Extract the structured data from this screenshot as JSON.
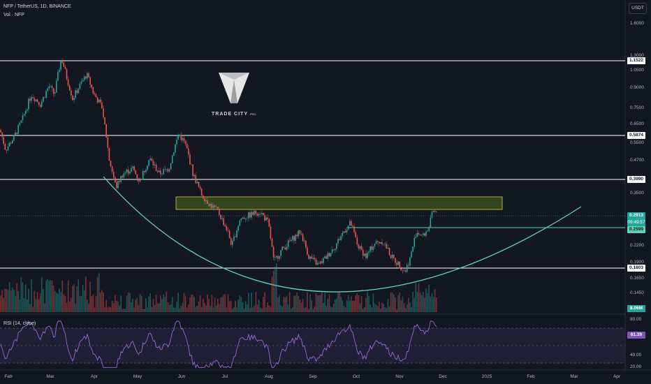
{
  "header": {
    "symbol_line": "NFP / TetherUS, 1D, BINANCE",
    "volume_line": "Vol · NFP"
  },
  "currency": "USDT",
  "logo": {
    "name": "TRADE CITY",
    "suffix": "PRO"
  },
  "price_axis": {
    "ticks": [
      "1.6000",
      "1.3000",
      "1.0500",
      "0.9000",
      "0.7500",
      "0.6500",
      "0.5500",
      "0.4700",
      "0.3500",
      "0.2200",
      "0.1900",
      "0.1650",
      "0.1450"
    ]
  },
  "price_labels": {
    "level_1": "1.1522",
    "level_2": "0.5874",
    "level_3": "0.3990",
    "last_price": "0.2913",
    "countdown": "09:49:57",
    "level_4": "0.2599",
    "level_5": "0.1803",
    "volume": "8.06M"
  },
  "rsi": {
    "title": "RSI (14, close)",
    "value": "61.39",
    "ticks": [
      "80.00",
      "40.00",
      "20.00"
    ]
  },
  "time_axis": [
    "Feb",
    "Mar",
    "Apr",
    "May",
    "Jun",
    "Jul",
    "Aug",
    "Sep",
    "Oct",
    "Nov",
    "Dec",
    "2025",
    "Feb",
    "Mar",
    "Apr"
  ],
  "colors": {
    "background": "#131722",
    "up": "#26a69a",
    "down": "#ef5350",
    "level": "#ffffff",
    "zone_fill": "#4e6b1e",
    "zone_border": "#d4c94a",
    "curve": "#5fd0b3",
    "rsi_line": "#9c66d6",
    "rsi_band": "#7e57c2",
    "last_price": "#26a69a",
    "volume_badge": "#26a69a"
  },
  "chart_data": {
    "type": "candlestick",
    "symbol": "NFP / TetherUS",
    "timeframe": "1D",
    "exchange": "BINANCE",
    "x_range": [
      "Feb",
      "Apr"
    ],
    "horizontal_levels": [
      1.1522,
      0.5874,
      0.399,
      0.2599,
      0.1803
    ],
    "resistance_zone": [
      0.305,
      0.335
    ],
    "last_price": 0.2913,
    "volume_last": "8.06M",
    "rsi_last": 61.39,
    "close_path": [
      [
        0,
        0.62
      ],
      [
        8,
        0.52
      ],
      [
        20,
        0.58
      ],
      [
        32,
        0.68
      ],
      [
        45,
        0.85
      ],
      [
        58,
        0.78
      ],
      [
        70,
        0.92
      ],
      [
        78,
        0.85
      ],
      [
        88,
        1.18
      ],
      [
        96,
        0.98
      ],
      [
        104,
        0.82
      ],
      [
        114,
        0.92
      ],
      [
        124,
        1.02
      ],
      [
        134,
        0.86
      ],
      [
        146,
        0.76
      ],
      [
        156,
        0.48
      ],
      [
        166,
        0.37
      ],
      [
        176,
        0.42
      ],
      [
        190,
        0.44
      ],
      [
        200,
        0.39
      ],
      [
        214,
        0.48
      ],
      [
        228,
        0.42
      ],
      [
        242,
        0.44
      ],
      [
        256,
        0.6
      ],
      [
        266,
        0.54
      ],
      [
        276,
        0.42
      ],
      [
        288,
        0.35
      ],
      [
        300,
        0.32
      ],
      [
        312,
        0.3
      ],
      [
        326,
        0.25
      ],
      [
        332,
        0.22
      ],
      [
        344,
        0.28
      ],
      [
        358,
        0.29
      ],
      [
        372,
        0.3
      ],
      [
        384,
        0.27
      ],
      [
        392,
        0.19
      ],
      [
        402,
        0.21
      ],
      [
        416,
        0.23
      ],
      [
        430,
        0.25
      ],
      [
        442,
        0.2
      ],
      [
        456,
        0.185
      ],
      [
        468,
        0.2
      ],
      [
        480,
        0.22
      ],
      [
        492,
        0.25
      ],
      [
        502,
        0.27
      ],
      [
        512,
        0.22
      ],
      [
        524,
        0.2
      ],
      [
        536,
        0.225
      ],
      [
        548,
        0.23
      ],
      [
        560,
        0.2
      ],
      [
        572,
        0.185
      ],
      [
        580,
        0.175
      ],
      [
        588,
        0.2
      ],
      [
        596,
        0.25
      ],
      [
        606,
        0.24
      ],
      [
        614,
        0.26
      ],
      [
        620,
        0.3
      ],
      [
        626,
        0.29
      ]
    ]
  }
}
